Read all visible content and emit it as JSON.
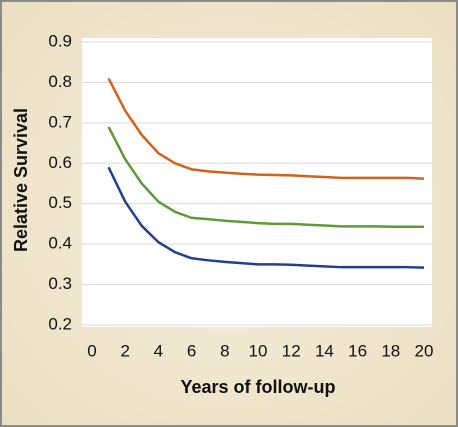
{
  "chart_data": {
    "type": "line",
    "x_label": "Years of follow-up",
    "y_label": "Relative Survival",
    "x": [
      1,
      2,
      3,
      4,
      5,
      6,
      7,
      8,
      9,
      10,
      11,
      12,
      13,
      14,
      15,
      16,
      17,
      18,
      19,
      20
    ],
    "series": [
      {
        "color": "#d0621c",
        "values": [
          0.81,
          0.73,
          0.67,
          0.625,
          0.6,
          0.585,
          0.58,
          0.577,
          0.574,
          0.572,
          0.571,
          0.57,
          0.568,
          0.566,
          0.564,
          0.564,
          0.564,
          0.564,
          0.564,
          0.562
        ]
      },
      {
        "color": "#5f9a3a",
        "values": [
          0.69,
          0.61,
          0.55,
          0.505,
          0.48,
          0.465,
          0.462,
          0.458,
          0.455,
          0.452,
          0.45,
          0.45,
          0.448,
          0.446,
          0.444,
          0.444,
          0.444,
          0.443,
          0.443,
          0.443
        ]
      },
      {
        "color": "#22408a",
        "values": [
          0.59,
          0.505,
          0.445,
          0.405,
          0.38,
          0.365,
          0.36,
          0.356,
          0.353,
          0.35,
          0.35,
          0.349,
          0.347,
          0.345,
          0.343,
          0.343,
          0.343,
          0.343,
          0.343,
          0.342
        ]
      }
    ],
    "xlim": [
      0,
      20
    ],
    "xticks": [
      0,
      2,
      4,
      6,
      8,
      10,
      12,
      14,
      16,
      18,
      20
    ],
    "ylim": [
      0.2,
      0.9
    ],
    "yticks": [
      0.2,
      0.3,
      0.4,
      0.5,
      0.6,
      0.7,
      0.8,
      0.9
    ],
    "grid": true
  }
}
